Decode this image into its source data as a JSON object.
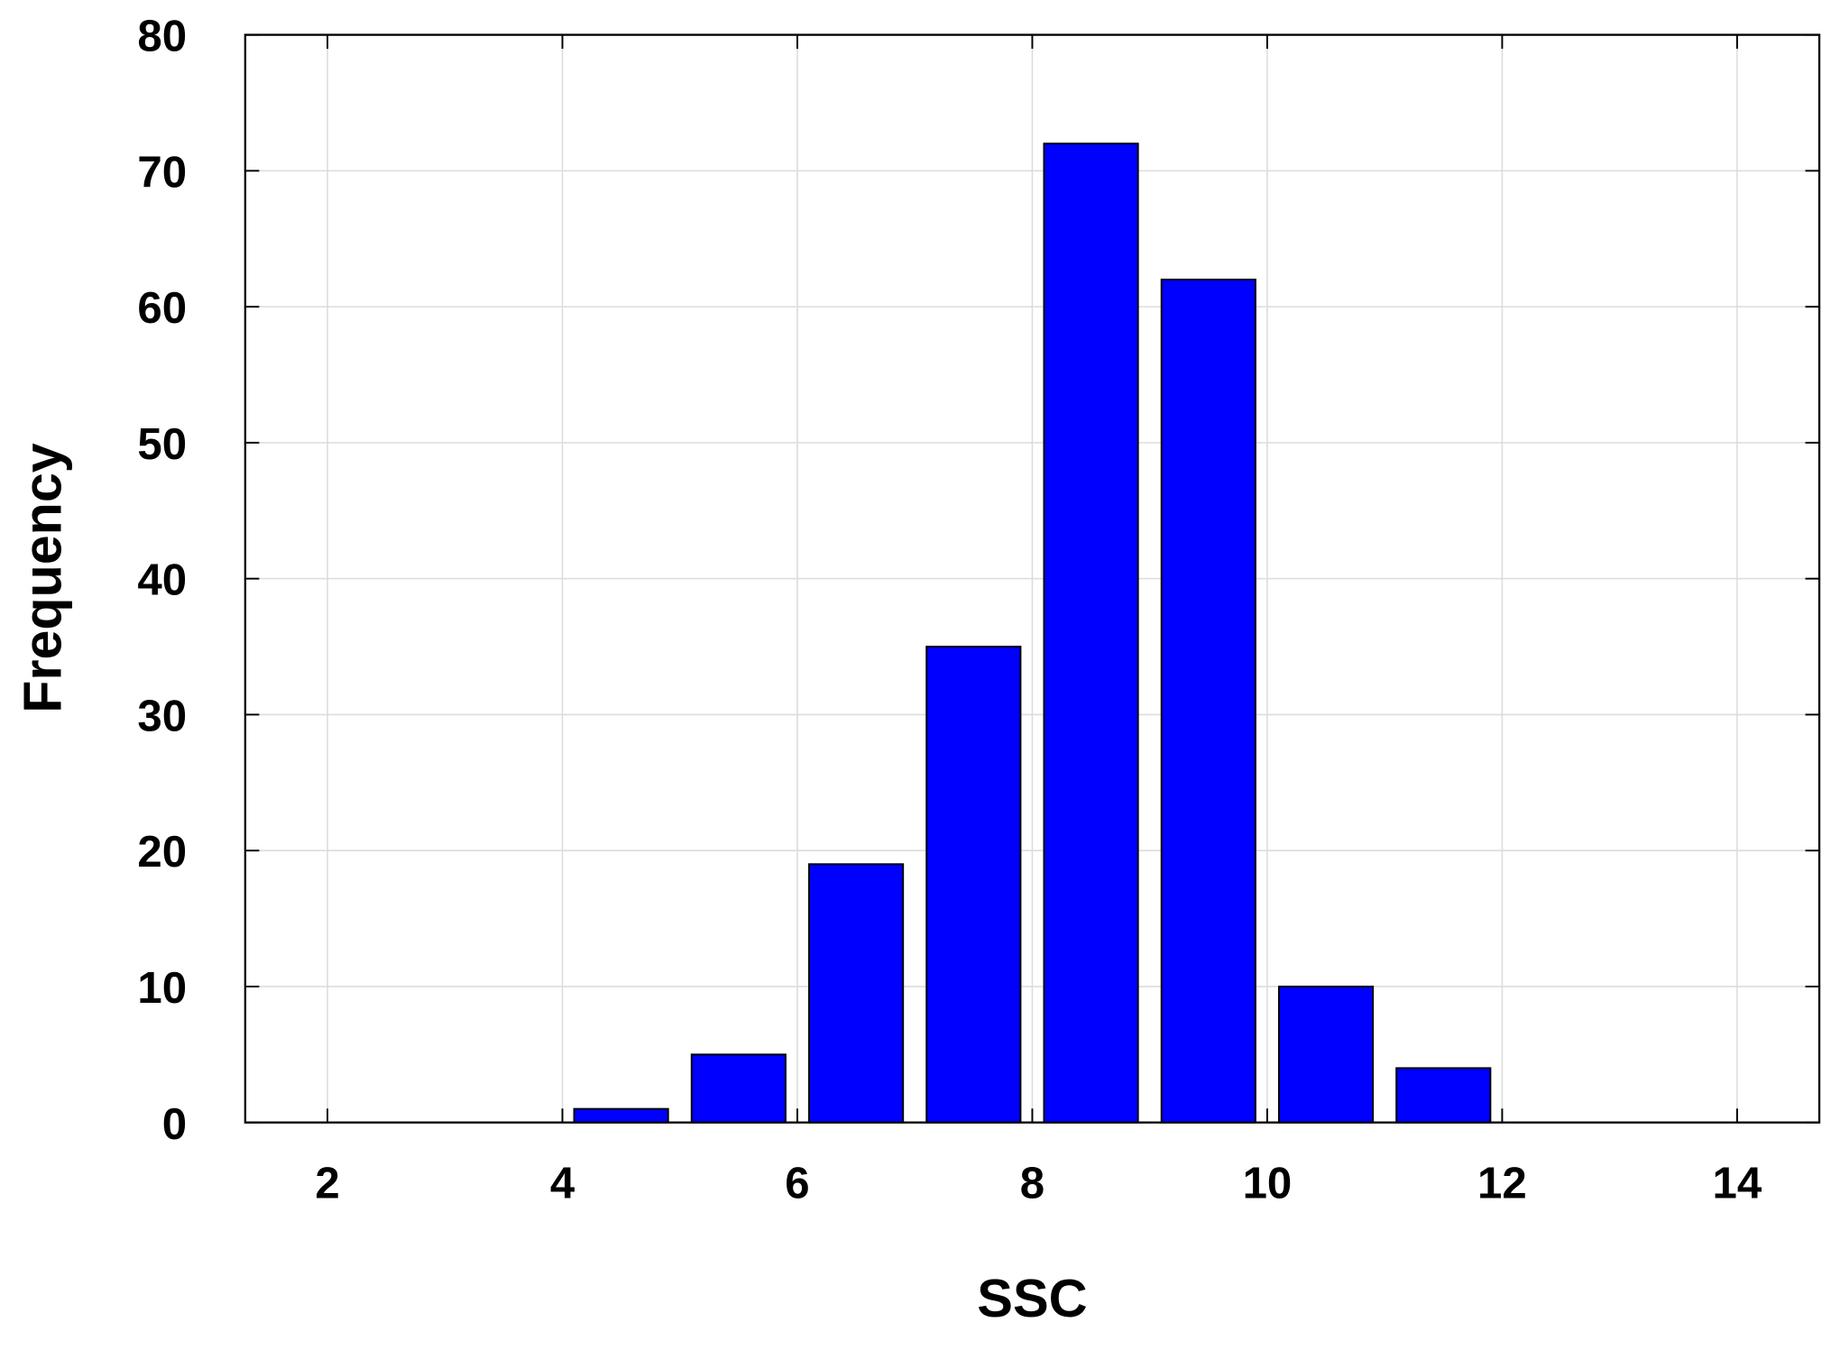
{
  "chart_data": {
    "type": "histogram",
    "x_label": "SSC",
    "y_label": "Frequency",
    "bins": [
      4,
      5,
      6,
      7,
      8,
      9,
      10,
      11,
      12
    ],
    "values": [
      1,
      5,
      19,
      35,
      72,
      62,
      10,
      4
    ],
    "color": "#0000ff",
    "xlim": [
      1.3,
      14.7
    ],
    "xticks": [
      2,
      4,
      6,
      8,
      10,
      12,
      14
    ],
    "ylim": [
      0,
      80
    ],
    "yticks": [
      0,
      10,
      20,
      30,
      40,
      50,
      60,
      70,
      80
    ],
    "grid": true
  }
}
